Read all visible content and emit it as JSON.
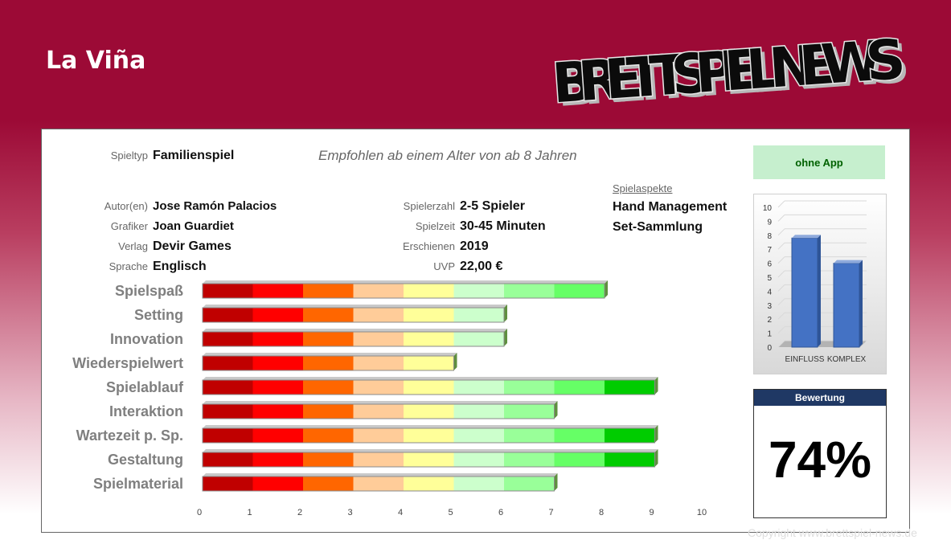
{
  "header": {
    "title": "La Viña"
  },
  "logo": {
    "text": "BRETTSPIEL NEWS"
  },
  "info": {
    "spieltyp_label": "Spieltyp",
    "spieltyp": "Familienspiel",
    "age_note": "Empfohlen ab einem Alter von ab 8 Jahren",
    "autor_label": "Autor(en)",
    "autor": "Jose Ramón Palacios",
    "grafiker_label": "Grafiker",
    "grafiker": "Joan Guardiet",
    "verlag_label": "Verlag",
    "verlag": "Devir Games",
    "sprache_label": "Sprache",
    "sprache": "Englisch",
    "spielerzahl_label": "Spielerzahl",
    "spielerzahl": "2-5 Spieler",
    "spielzeit_label": "Spielzeit",
    "spielzeit": "30-45 Minuten",
    "erschienen_label": "Erschienen",
    "erschienen": "2019",
    "uvp_label": "UVP",
    "uvp": "22,00 €",
    "aspects_label": "Spielaspekte",
    "aspects": [
      "Hand Management",
      "Set-Sammlung"
    ]
  },
  "app_badge": "ohne App",
  "rating": {
    "label": "Bewertung",
    "value": "74%"
  },
  "copyright": "Copyright www.brettspiel-news.de",
  "segment_colors": [
    "#c00000",
    "#ff0000",
    "#ff6600",
    "#ffcc99",
    "#ffff99",
    "#ccffcc",
    "#99ff99",
    "#66ff66",
    "#00cc00",
    "#009900"
  ],
  "chart_data": [
    {
      "type": "bar",
      "orientation": "horizontal",
      "categories": [
        "Spielspaß",
        "Setting",
        "Innovation",
        "Wiederspielwert",
        "Spielablauf",
        "Interaktion",
        "Wartezeit p. Sp.",
        "Gestaltung",
        "Spielmaterial"
      ],
      "values": [
        8,
        6,
        6,
        5,
        9,
        7,
        9,
        9,
        7
      ],
      "xlim": [
        0,
        10
      ],
      "xticks": [
        "0",
        "1",
        "2",
        "3",
        "4",
        "5",
        "6",
        "7",
        "8",
        "9",
        "10"
      ]
    },
    {
      "type": "bar",
      "categories": [
        "EINFLUSS",
        "KOMPLEX"
      ],
      "values": [
        7.8,
        6
      ],
      "ylim": [
        0,
        10
      ],
      "yticks": [
        "0",
        "1",
        "2",
        "3",
        "4",
        "5",
        "6",
        "7",
        "8",
        "9",
        "10"
      ],
      "color": "#4472c4"
    }
  ]
}
